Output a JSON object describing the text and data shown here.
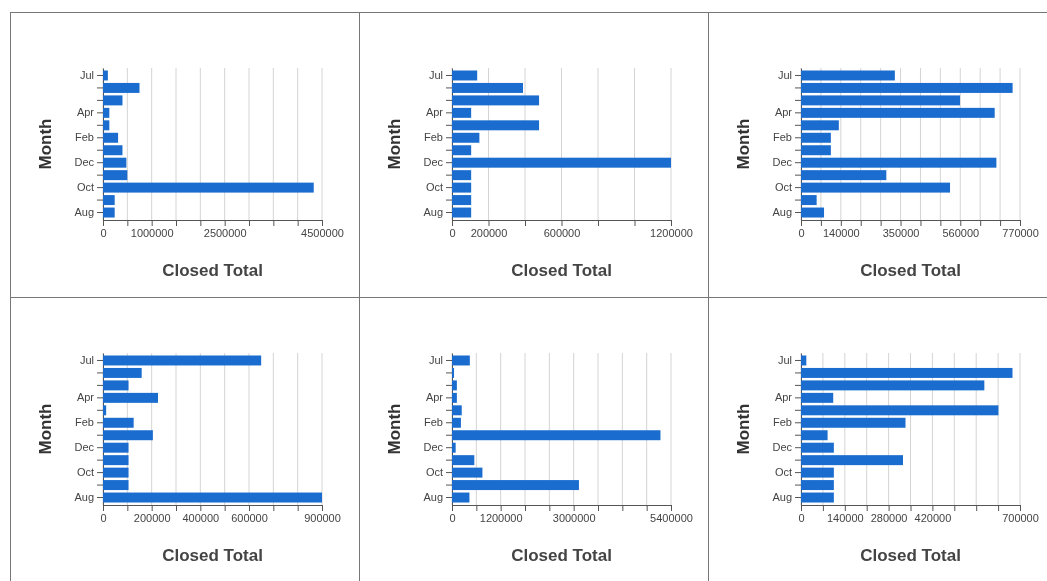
{
  "chart_data": [
    {
      "type": "bar",
      "orientation": "horizontal",
      "xlabel": "Closed Total",
      "ylabel": "Month",
      "categories": [
        "Jul",
        null,
        null,
        "Apr",
        null,
        "Feb",
        null,
        "Dec",
        null,
        "Oct",
        null,
        "Aug"
      ],
      "values": [
        100000,
        750000,
        400000,
        130000,
        130000,
        310000,
        400000,
        480000,
        500000,
        4330000,
        240000,
        240000
      ],
      "color": "#1a6ccf",
      "xlim": [
        0,
        4500000
      ],
      "xticks": [
        0,
        {
          "value": 500000,
          "label": null
        },
        1000000,
        {
          "value": 1500000,
          "label": null
        },
        {
          "value": 2000000,
          "label": null
        },
        2500000,
        {
          "value": 3000000,
          "label": null
        },
        {
          "value": 3500000,
          "label": null
        },
        {
          "value": 4000000,
          "label": null
        },
        4500000
      ],
      "grid": "x"
    },
    {
      "type": "bar",
      "orientation": "horizontal",
      "xlabel": "Closed Total",
      "ylabel": "Month",
      "categories": [
        "Jul",
        null,
        null,
        "Apr",
        null,
        "Feb",
        null,
        "Dec",
        null,
        "Oct",
        null,
        "Aug"
      ],
      "values": [
        138000,
        389000,
        477000,
        105000,
        477000,
        150000,
        105000,
        1200000,
        105000,
        105000,
        105000,
        105000
      ],
      "color": "#1a6ccf",
      "xlim": [
        0,
        1200000
      ],
      "xticks": [
        0,
        200000,
        {
          "value": 400000,
          "label": null
        },
        600000,
        {
          "value": 800000,
          "label": null
        },
        {
          "value": 1000000,
          "label": null
        },
        1200000
      ],
      "grid": "x"
    },
    {
      "type": "bar",
      "orientation": "horizontal",
      "xlabel": "Closed Total",
      "ylabel": "Month",
      "categories": [
        "Jul",
        null,
        null,
        "Apr",
        null,
        "Feb",
        null,
        "Dec",
        null,
        "Oct",
        null,
        "Aug"
      ],
      "values": [
        330000,
        744000,
        559000,
        681000,
        133000,
        105000,
        105000,
        687000,
        300000,
        524000,
        55000,
        81000
      ],
      "color": "#1a6ccf",
      "xlim": [
        0,
        770000
      ],
      "xticks": [
        0,
        {
          "value": 70000,
          "label": null
        },
        140000,
        {
          "value": 210000,
          "label": null
        },
        {
          "value": 280000,
          "label": null
        },
        350000,
        {
          "value": 420000,
          "label": null
        },
        {
          "value": 490000,
          "label": null
        },
        560000,
        {
          "value": 630000,
          "label": null
        },
        {
          "value": 700000,
          "label": null
        },
        770000
      ],
      "grid": "x"
    },
    {
      "type": "bar",
      "orientation": "horizontal",
      "xlabel": "Closed Total",
      "ylabel": "Month",
      "categories": [
        "Jul",
        null,
        null,
        "Apr",
        null,
        "Feb",
        null,
        "Dec",
        null,
        "Oct",
        null,
        "Aug"
      ],
      "values": [
        650000,
        159000,
        105000,
        226000,
        13000,
        126000,
        205000,
        105000,
        105000,
        105000,
        105000,
        900000
      ],
      "color": "#1a6ccf",
      "xlim": [
        0,
        900000
      ],
      "xticks": [
        0,
        {
          "value": 100000,
          "label": null
        },
        200000,
        {
          "value": 300000,
          "label": null
        },
        400000,
        {
          "value": 500000,
          "label": null
        },
        600000,
        {
          "value": 700000,
          "label": null
        },
        {
          "value": 800000,
          "label": null
        },
        900000
      ],
      "grid": "x"
    },
    {
      "type": "bar",
      "orientation": "horizontal",
      "xlabel": "Closed Total",
      "ylabel": "Month",
      "categories": [
        "Jul",
        null,
        null,
        "Apr",
        null,
        "Feb",
        null,
        "Dec",
        null,
        "Oct",
        null,
        "Aug"
      ],
      "values": [
        440000,
        50000,
        120000,
        120000,
        240000,
        220000,
        5140000,
        90000,
        550000,
        750000,
        3130000,
        430000
      ],
      "color": "#1a6ccf",
      "xlim": [
        0,
        5400000
      ],
      "xticks": [
        0,
        {
          "value": 600000,
          "label": null
        },
        1200000,
        {
          "value": 1800000,
          "label": null
        },
        {
          "value": 2400000,
          "label": null
        },
        3000000,
        {
          "value": 3600000,
          "label": null
        },
        {
          "value": 4200000,
          "label": null
        },
        {
          "value": 4800000,
          "label": null
        },
        5400000
      ],
      "grid": "x"
    },
    {
      "type": "bar",
      "orientation": "horizontal",
      "xlabel": "Closed Total",
      "ylabel": "Month",
      "categories": [
        "Jul",
        null,
        null,
        "Apr",
        null,
        "Feb",
        null,
        "Dec",
        null,
        "Oct",
        null,
        "Aug"
      ],
      "values": [
        17000,
        676000,
        586000,
        103000,
        631000,
        334000,
        85000,
        105000,
        326000,
        105000,
        105000,
        105000
      ],
      "color": "#1a6ccf",
      "xlim": [
        0,
        700000
      ],
      "xticks": [
        0,
        {
          "value": 70000,
          "label": null
        },
        140000,
        {
          "value": 210000,
          "label": null
        },
        280000,
        {
          "value": 350000,
          "label": null
        },
        420000,
        {
          "value": 490000,
          "label": null
        },
        {
          "value": 560000,
          "label": null
        },
        {
          "value": 630000,
          "label": null
        },
        700000
      ],
      "grid": "x"
    }
  ]
}
